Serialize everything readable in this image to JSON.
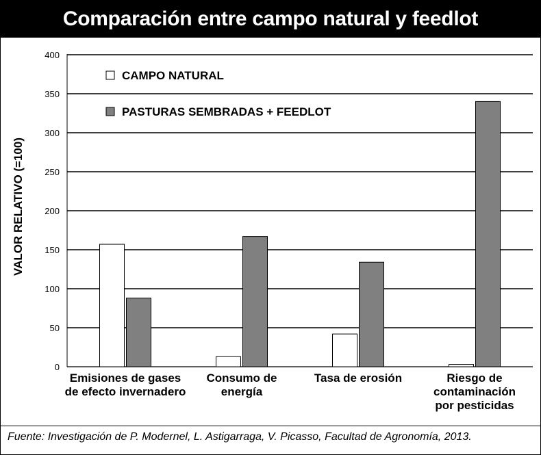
{
  "title": "Comparación entre campo natural y feedlot",
  "footer": "Fuente: Investigación de P. Modernel, L. Astigarraga, V. Picasso, Facultad de Agronomía, 2013.",
  "chart_data": {
    "type": "bar",
    "ylabel": "VALOR RELATIVO (=100)",
    "ylim": [
      0,
      400
    ],
    "yticks": [
      "0",
      "50",
      "100",
      "150",
      "200",
      "250",
      "300",
      "350",
      "400"
    ],
    "grid": true,
    "legend_position": "top-left",
    "categories": [
      [
        "Emisiones de gases",
        "de efecto invernadero"
      ],
      [
        "Consumo de",
        "energía"
      ],
      [
        "Tasa de erosión"
      ],
      [
        "Riesgo de",
        "contaminación",
        "por pesticidas"
      ]
    ],
    "series": [
      {
        "name": "CAMPO NATURAL",
        "color": "#ffffff",
        "values": [
          157,
          13,
          42,
          3
        ]
      },
      {
        "name": "PASTURAS SEMBRADAS + FEEDLOT",
        "color": "#808080",
        "values": [
          88,
          167,
          134,
          340
        ]
      }
    ]
  }
}
